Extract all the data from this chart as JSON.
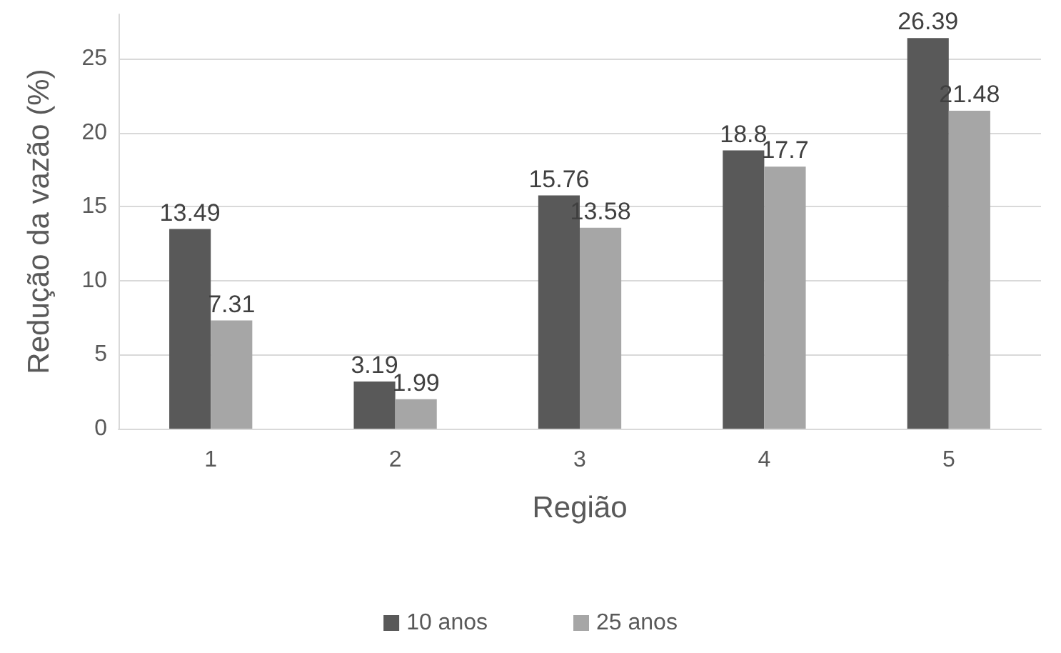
{
  "chart_data": {
    "type": "bar",
    "xlabel": "Região",
    "ylabel": "Redução da vazão (%)",
    "categories": [
      "1",
      "2",
      "3",
      "4",
      "5"
    ],
    "series": [
      {
        "name": "10 anos",
        "color": "#595959",
        "values": [
          13.49,
          3.19,
          15.76,
          18.8,
          26.39
        ]
      },
      {
        "name": "25 anos",
        "color": "#a6a6a6",
        "values": [
          7.31,
          1.99,
          13.58,
          17.7,
          21.48
        ]
      }
    ],
    "ylim": [
      0,
      28
    ],
    "yticks": [
      0,
      5,
      10,
      15,
      20,
      25
    ],
    "grid": "y",
    "legend": "bottom",
    "data_labels": true
  }
}
